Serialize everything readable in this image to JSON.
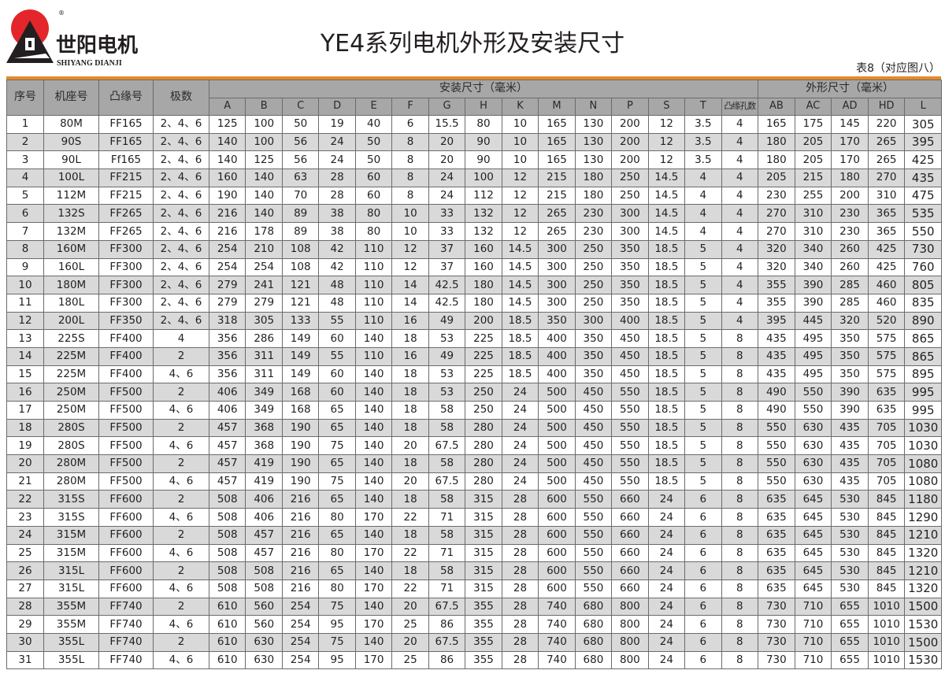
{
  "logo": {
    "cn": "世阳电机",
    "en": "SHIYANG DIANJI",
    "reg": "®",
    "colors": {
      "sun": "#e3262b",
      "mark": "#231f20"
    }
  },
  "title": "YE4系列电机外形及安装尺寸",
  "subtitle": "表8（对应图八）",
  "header": {
    "no": "序号",
    "frame": "机座号",
    "flange": "凸缘号",
    "poles": "极数",
    "install_group": "安装尺寸（毫米）",
    "outline_group": "外形尺寸（毫米）",
    "install_cols": [
      "A",
      "B",
      "C",
      "D",
      "E",
      "F",
      "G",
      "H",
      "K",
      "M",
      "N",
      "P",
      "S",
      "T",
      "凸缘孔数"
    ],
    "outline_cols": [
      "AB",
      "AC",
      "AD",
      "HD",
      "L"
    ]
  },
  "colors": {
    "accent": "#e58a2a",
    "header_bg": "#a7a7a7",
    "stripe": "#d9d9d9"
  },
  "rows": [
    [
      "1",
      "80M",
      "FF165",
      "2、4、6",
      "125",
      "100",
      "50",
      "19",
      "40",
      "6",
      "15.5",
      "80",
      "10",
      "165",
      "130",
      "200",
      "12",
      "3.5",
      "4",
      "165",
      "175",
      "145",
      "220",
      "305"
    ],
    [
      "2",
      "90S",
      "FF165",
      "2、4、6",
      "140",
      "100",
      "56",
      "24",
      "50",
      "8",
      "20",
      "90",
      "10",
      "165",
      "130",
      "200",
      "12",
      "3.5",
      "4",
      "180",
      "205",
      "170",
      "265",
      "395"
    ],
    [
      "3",
      "90L",
      "Ff165",
      "2、4、6",
      "140",
      "125",
      "56",
      "24",
      "50",
      "8",
      "20",
      "90",
      "10",
      "165",
      "130",
      "200",
      "12",
      "3.5",
      "4",
      "180",
      "205",
      "170",
      "265",
      "425"
    ],
    [
      "4",
      "100L",
      "FF215",
      "2、4、6",
      "160",
      "140",
      "63",
      "28",
      "60",
      "8",
      "24",
      "100",
      "12",
      "215",
      "180",
      "250",
      "14.5",
      "4",
      "4",
      "205",
      "215",
      "180",
      "270",
      "435"
    ],
    [
      "5",
      "112M",
      "FF215",
      "2、4、6",
      "190",
      "140",
      "70",
      "28",
      "60",
      "8",
      "24",
      "112",
      "12",
      "215",
      "180",
      "250",
      "14.5",
      "4",
      "4",
      "230",
      "255",
      "200",
      "310",
      "475"
    ],
    [
      "6",
      "132S",
      "FF265",
      "2、4、6",
      "216",
      "140",
      "89",
      "38",
      "80",
      "10",
      "33",
      "132",
      "12",
      "265",
      "230",
      "300",
      "14.5",
      "4",
      "4",
      "270",
      "310",
      "230",
      "365",
      "535"
    ],
    [
      "7",
      "132M",
      "FF265",
      "2、4、6",
      "216",
      "178",
      "89",
      "38",
      "80",
      "10",
      "33",
      "132",
      "12",
      "265",
      "230",
      "300",
      "14.5",
      "4",
      "4",
      "270",
      "310",
      "230",
      "365",
      "550"
    ],
    [
      "8",
      "160M",
      "FF300",
      "2、4、6",
      "254",
      "210",
      "108",
      "42",
      "110",
      "12",
      "37",
      "160",
      "14.5",
      "300",
      "250",
      "350",
      "18.5",
      "5",
      "4",
      "320",
      "340",
      "260",
      "425",
      "730"
    ],
    [
      "9",
      "160L",
      "FF300",
      "2、4、6",
      "254",
      "254",
      "108",
      "42",
      "110",
      "12",
      "37",
      "160",
      "14.5",
      "300",
      "250",
      "350",
      "18.5",
      "5",
      "4",
      "320",
      "340",
      "260",
      "425",
      "760"
    ],
    [
      "10",
      "180M",
      "FF300",
      "2、4、6",
      "279",
      "241",
      "121",
      "48",
      "110",
      "14",
      "42.5",
      "180",
      "14.5",
      "300",
      "250",
      "350",
      "18.5",
      "5",
      "4",
      "355",
      "390",
      "285",
      "460",
      "805"
    ],
    [
      "11",
      "180L",
      "FF300",
      "2、4、6",
      "279",
      "279",
      "121",
      "48",
      "110",
      "14",
      "42.5",
      "180",
      "14.5",
      "300",
      "250",
      "350",
      "18.5",
      "5",
      "4",
      "355",
      "390",
      "285",
      "460",
      "835"
    ],
    [
      "12",
      "200L",
      "FF350",
      "2、4、6",
      "318",
      "305",
      "133",
      "55",
      "110",
      "16",
      "49",
      "200",
      "18.5",
      "350",
      "300",
      "400",
      "18.5",
      "5",
      "4",
      "395",
      "445",
      "320",
      "520",
      "890"
    ],
    [
      "13",
      "225S",
      "FF400",
      "4",
      "356",
      "286",
      "149",
      "60",
      "140",
      "18",
      "53",
      "225",
      "18.5",
      "400",
      "350",
      "450",
      "18.5",
      "5",
      "8",
      "435",
      "495",
      "350",
      "575",
      "865"
    ],
    [
      "14",
      "225M",
      "FF400",
      "2",
      "356",
      "311",
      "149",
      "55",
      "110",
      "16",
      "49",
      "225",
      "18.5",
      "400",
      "350",
      "450",
      "18.5",
      "5",
      "8",
      "435",
      "495",
      "350",
      "575",
      "865"
    ],
    [
      "15",
      "225M",
      "FF400",
      "4、6",
      "356",
      "311",
      "149",
      "60",
      "140",
      "18",
      "53",
      "225",
      "18.5",
      "400",
      "350",
      "450",
      "18.5",
      "5",
      "8",
      "435",
      "495",
      "350",
      "575",
      "895"
    ],
    [
      "16",
      "250M",
      "FF500",
      "2",
      "406",
      "349",
      "168",
      "60",
      "140",
      "18",
      "53",
      "250",
      "24",
      "500",
      "450",
      "550",
      "18.5",
      "5",
      "8",
      "490",
      "550",
      "390",
      "635",
      "995"
    ],
    [
      "17",
      "250M",
      "FF500",
      "4、6",
      "406",
      "349",
      "168",
      "65",
      "140",
      "18",
      "58",
      "250",
      "24",
      "500",
      "450",
      "550",
      "18.5",
      "5",
      "8",
      "490",
      "550",
      "390",
      "635",
      "995"
    ],
    [
      "18",
      "280S",
      "FF500",
      "2",
      "457",
      "368",
      "190",
      "65",
      "140",
      "18",
      "58",
      "280",
      "24",
      "500",
      "450",
      "550",
      "18.5",
      "5",
      "8",
      "550",
      "630",
      "435",
      "705",
      "1030"
    ],
    [
      "19",
      "280S",
      "FF500",
      "4、6",
      "457",
      "368",
      "190",
      "75",
      "140",
      "20",
      "67.5",
      "280",
      "24",
      "500",
      "450",
      "550",
      "18.5",
      "5",
      "8",
      "550",
      "630",
      "435",
      "705",
      "1030"
    ],
    [
      "20",
      "280M",
      "FF500",
      "2",
      "457",
      "419",
      "190",
      "65",
      "140",
      "18",
      "58",
      "280",
      "24",
      "500",
      "450",
      "550",
      "18.5",
      "5",
      "8",
      "550",
      "630",
      "435",
      "705",
      "1080"
    ],
    [
      "21",
      "280M",
      "FF500",
      "4、6",
      "457",
      "419",
      "190",
      "75",
      "140",
      "20",
      "67.5",
      "280",
      "24",
      "500",
      "450",
      "550",
      "18.5",
      "5",
      "8",
      "550",
      "630",
      "435",
      "705",
      "1080"
    ],
    [
      "22",
      "315S",
      "FF600",
      "2",
      "508",
      "406",
      "216",
      "65",
      "140",
      "18",
      "58",
      "315",
      "28",
      "600",
      "550",
      "660",
      "24",
      "6",
      "8",
      "635",
      "645",
      "530",
      "845",
      "1180"
    ],
    [
      "23",
      "315S",
      "FF600",
      "4、6",
      "508",
      "406",
      "216",
      "80",
      "170",
      "22",
      "71",
      "315",
      "28",
      "600",
      "550",
      "660",
      "24",
      "6",
      "8",
      "635",
      "645",
      "530",
      "845",
      "1290"
    ],
    [
      "24",
      "315M",
      "FF600",
      "2",
      "508",
      "457",
      "216",
      "65",
      "140",
      "18",
      "58",
      "315",
      "28",
      "600",
      "550",
      "660",
      "24",
      "6",
      "8",
      "635",
      "645",
      "530",
      "845",
      "1210"
    ],
    [
      "25",
      "315M",
      "FF600",
      "4、6",
      "508",
      "457",
      "216",
      "80",
      "170",
      "22",
      "71",
      "315",
      "28",
      "600",
      "550",
      "660",
      "24",
      "6",
      "8",
      "635",
      "645",
      "530",
      "845",
      "1320"
    ],
    [
      "26",
      "315L",
      "FF600",
      "2",
      "508",
      "508",
      "216",
      "65",
      "140",
      "18",
      "58",
      "315",
      "28",
      "600",
      "550",
      "660",
      "24",
      "6",
      "8",
      "635",
      "645",
      "530",
      "845",
      "1210"
    ],
    [
      "27",
      "315L",
      "FF600",
      "4、6",
      "508",
      "508",
      "216",
      "80",
      "170",
      "22",
      "71",
      "315",
      "28",
      "600",
      "550",
      "660",
      "24",
      "6",
      "8",
      "635",
      "645",
      "530",
      "845",
      "1320"
    ],
    [
      "28",
      "355M",
      "FF740",
      "2",
      "610",
      "560",
      "254",
      "75",
      "140",
      "20",
      "67.5",
      "355",
      "28",
      "740",
      "680",
      "800",
      "24",
      "6",
      "8",
      "730",
      "710",
      "655",
      "1010",
      "1500"
    ],
    [
      "29",
      "355M",
      "FF740",
      "4、6",
      "610",
      "560",
      "254",
      "95",
      "170",
      "25",
      "86",
      "355",
      "28",
      "740",
      "680",
      "800",
      "24",
      "6",
      "8",
      "730",
      "710",
      "655",
      "1010",
      "1530"
    ],
    [
      "30",
      "355L",
      "FF740",
      "2",
      "610",
      "630",
      "254",
      "75",
      "140",
      "20",
      "67.5",
      "355",
      "28",
      "740",
      "680",
      "800",
      "24",
      "6",
      "8",
      "730",
      "710",
      "655",
      "1010",
      "1500"
    ],
    [
      "31",
      "355L",
      "FF740",
      "4、6",
      "610",
      "630",
      "254",
      "95",
      "170",
      "25",
      "86",
      "355",
      "28",
      "740",
      "680",
      "800",
      "24",
      "6",
      "8",
      "730",
      "710",
      "655",
      "1010",
      "1530"
    ]
  ]
}
